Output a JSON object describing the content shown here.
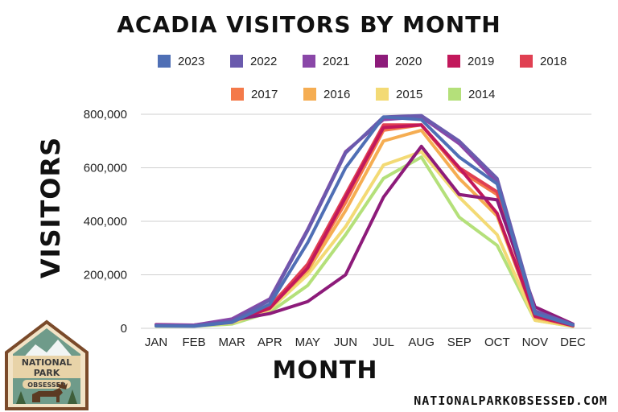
{
  "chart_data": {
    "type": "line",
    "title": "ACADIA VISITORS BY MONTH",
    "xlabel": "MONTH",
    "ylabel": "VISITORS",
    "categories": [
      "JAN",
      "FEB",
      "MAR",
      "APR",
      "MAY",
      "JUN",
      "JUL",
      "AUG",
      "SEP",
      "OCT",
      "NOV",
      "DEC"
    ],
    "ylim": [
      0,
      800000
    ],
    "yticks": [
      0,
      200000,
      400000,
      600000,
      800000
    ],
    "ytick_labels": [
      "0",
      "200,000",
      "400,000",
      "600,000",
      "800,000"
    ],
    "grid": "horizontal",
    "legend_placement": "top",
    "series": [
      {
        "name": "2023",
        "color": "#4f6fb5",
        "values": [
          9000,
          8000,
          22000,
          90000,
          320000,
          600000,
          790000,
          780000,
          640000,
          540000,
          55000,
          12000
        ]
      },
      {
        "name": "2022",
        "color": "#6a5aad",
        "values": [
          10000,
          9000,
          28000,
          105000,
          365000,
          655000,
          790000,
          795000,
          700000,
          560000,
          65000,
          14000
        ]
      },
      {
        "name": "2021",
        "color": "#8a47a8",
        "values": [
          12000,
          12000,
          35000,
          110000,
          370000,
          660000,
          780000,
          790000,
          690000,
          545000,
          60000,
          14000
        ]
      },
      {
        "name": "2020",
        "color": "#8d1b7a",
        "values": [
          14000,
          12000,
          30000,
          55000,
          100000,
          200000,
          490000,
          680000,
          500000,
          480000,
          80000,
          16000
        ]
      },
      {
        "name": "2019",
        "color": "#c2185b",
        "values": [
          13000,
          11000,
          26000,
          75000,
          225000,
          490000,
          750000,
          760000,
          600000,
          430000,
          45000,
          10000
        ]
      },
      {
        "name": "2018",
        "color": "#e04052",
        "values": [
          12000,
          11000,
          25000,
          80000,
          240000,
          500000,
          760000,
          760000,
          600000,
          510000,
          45000,
          10000
        ]
      },
      {
        "name": "2017",
        "color": "#f47a4a",
        "values": [
          11000,
          10000,
          24000,
          85000,
          230000,
          470000,
          740000,
          760000,
          590000,
          500000,
          50000,
          10000
        ]
      },
      {
        "name": "2016",
        "color": "#f5ad52",
        "values": [
          10000,
          9000,
          22000,
          80000,
          215000,
          440000,
          700000,
          740000,
          560000,
          420000,
          40000,
          9000
        ]
      },
      {
        "name": "2015",
        "color": "#f3da75",
        "values": [
          9000,
          9000,
          20000,
          70000,
          200000,
          380000,
          610000,
          660000,
          490000,
          350000,
          30000,
          8000
        ]
      },
      {
        "name": "2014",
        "color": "#b4e07a",
        "values": [
          8000,
          8000,
          16000,
          60000,
          160000,
          350000,
          560000,
          640000,
          415000,
          310000,
          30000,
          7000
        ]
      }
    ]
  },
  "badge": {
    "line1": "NATIONAL",
    "line2": "PARK",
    "line3": "OBSESSED",
    "icon": "moose-icon"
  },
  "website": "NATIONALPARKOBSESSED.COM"
}
